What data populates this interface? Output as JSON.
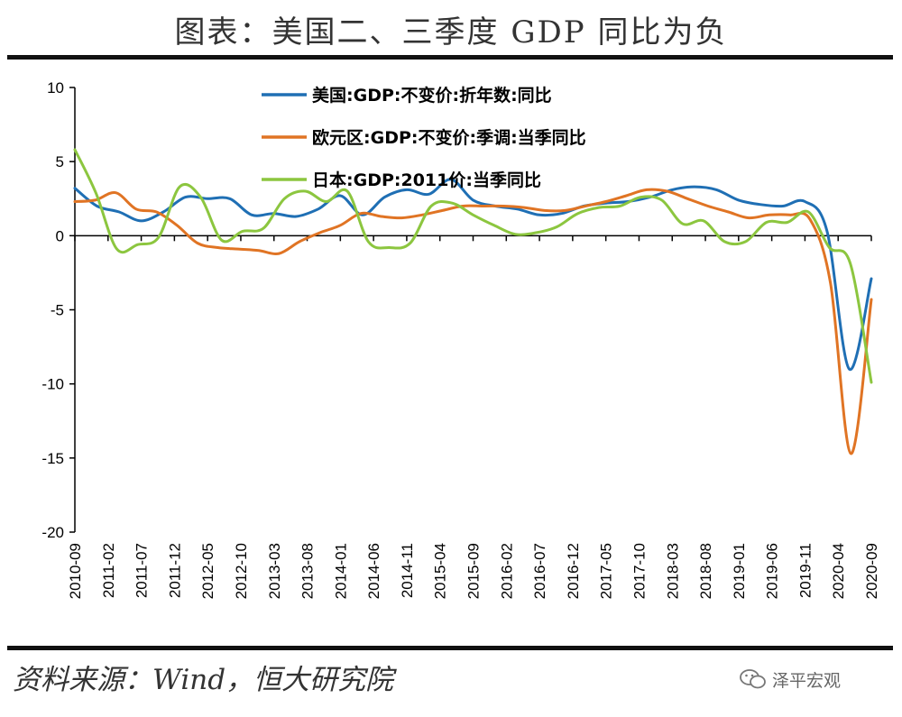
{
  "header": {
    "title": "图表：美国二、三季度 GDP 同比为负"
  },
  "footer": {
    "source": "资料来源：Wind，恒大研究院",
    "watermark": "泽平宏观"
  },
  "chart_data": {
    "type": "line",
    "title": "图表：美国二、三季度 GDP 同比为负",
    "xlabel": "",
    "ylabel": "",
    "ylim": [
      -20,
      10
    ],
    "yticks": [
      10,
      5,
      0,
      -5,
      -10,
      -15,
      -20
    ],
    "xtick_labels": [
      "2010-09",
      "2011-02",
      "2011-07",
      "2011-12",
      "2012-05",
      "2012-10",
      "2013-03",
      "2013-08",
      "2014-01",
      "2014-06",
      "2014-11",
      "2015-04",
      "2015-09",
      "2016-02",
      "2016-07",
      "2016-12",
      "2017-05",
      "2017-10",
      "2018-03",
      "2018-08",
      "2019-01",
      "2019-06",
      "2019-11",
      "2020-04",
      "2020-09"
    ],
    "legend_position": "top-center",
    "series": [
      {
        "name": "美国:GDP:不变价:折年数:同比",
        "color": "#1f6fb4",
        "values": [
          3.2,
          2.0,
          1.6,
          1.0,
          1.6,
          2.6,
          2.5,
          2.5,
          1.4,
          1.5,
          1.3,
          1.8,
          2.7,
          1.4,
          2.6,
          3.1,
          2.8,
          3.8,
          2.4,
          2.0,
          1.8,
          1.4,
          1.5,
          2.0,
          2.2,
          2.3,
          2.6,
          3.1,
          3.3,
          3.1,
          2.4,
          2.1,
          2.0,
          2.3,
          0.3,
          -9.0,
          -2.9
        ]
      },
      {
        "name": "欧元区:GDP:不变价:季调:当季同比",
        "color": "#e07424",
        "values": [
          2.3,
          2.4,
          2.9,
          1.8,
          1.6,
          0.7,
          -0.5,
          -0.8,
          -0.9,
          -1.0,
          -1.2,
          -0.4,
          0.2,
          0.7,
          1.5,
          1.3,
          1.2,
          1.4,
          1.7,
          2.0,
          2.0,
          2.0,
          1.9,
          1.7,
          1.7,
          2.0,
          2.3,
          2.7,
          3.1,
          3.0,
          2.5,
          2.0,
          1.6,
          1.2,
          1.4,
          1.4,
          1.1,
          -3.2,
          -14.7,
          -4.3
        ]
      },
      {
        "name": "日本:GDP:2011价:当季同比",
        "color": "#8cc63f",
        "values": [
          5.8,
          2.9,
          -0.9,
          -0.6,
          -0.1,
          3.3,
          2.6,
          -0.3,
          0.3,
          0.5,
          2.5,
          3.0,
          2.3,
          3.0,
          -0.4,
          -0.8,
          -0.5,
          2.0,
          2.2,
          1.4,
          0.7,
          0.1,
          0.2,
          0.6,
          1.5,
          1.9,
          2.0,
          2.6,
          2.4,
          0.8,
          1.0,
          -0.4,
          -0.4,
          0.9,
          0.9,
          1.6,
          -0.8,
          -1.9,
          -9.9
        ]
      }
    ]
  }
}
